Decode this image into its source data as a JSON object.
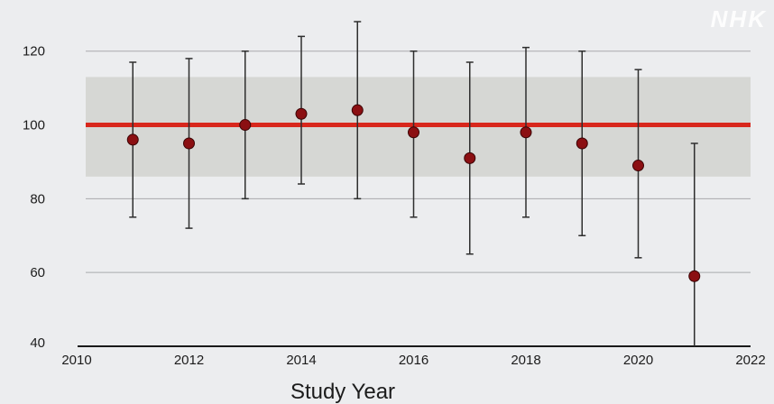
{
  "watermark": "NHK",
  "chart_data": {
    "type": "scatter",
    "title": "",
    "xlabel": "Study Year",
    "ylabel": "",
    "xlim": [
      2010,
      2022
    ],
    "ylim": [
      40,
      128
    ],
    "x_ticks": [
      "2010",
      "2012",
      "2014",
      "2016",
      "2018",
      "2020",
      "2022"
    ],
    "y_ticks": [
      "40",
      "60",
      "80",
      "100",
      "120"
    ],
    "gridlines_y": [
      60,
      80,
      120
    ],
    "reference_line": {
      "y": 100,
      "color": "#d8271c"
    },
    "reference_band": {
      "low": 86,
      "high": 113,
      "color": "#d6d7d4"
    },
    "marker_color": "#8b0f12",
    "series": [
      {
        "points": [
          {
            "x": 2011,
            "y": 96,
            "low": 75,
            "high": 117
          },
          {
            "x": 2012,
            "y": 95,
            "low": 72,
            "high": 118
          },
          {
            "x": 2013,
            "y": 100,
            "low": 80,
            "high": 120
          },
          {
            "x": 2014,
            "y": 103,
            "low": 84,
            "high": 124
          },
          {
            "x": 2015,
            "y": 104,
            "low": 80,
            "high": 128
          },
          {
            "x": 2016,
            "y": 98,
            "low": 75,
            "high": 120
          },
          {
            "x": 2017,
            "y": 91,
            "low": 65,
            "high": 117
          },
          {
            "x": 2018,
            "y": 98,
            "low": 75,
            "high": 121
          },
          {
            "x": 2019,
            "y": 95,
            "low": 70,
            "high": 120
          },
          {
            "x": 2020,
            "y": 89,
            "low": 64,
            "high": 115
          },
          {
            "x": 2021,
            "y": 59,
            "low": 40,
            "high": 95
          }
        ]
      }
    ]
  }
}
